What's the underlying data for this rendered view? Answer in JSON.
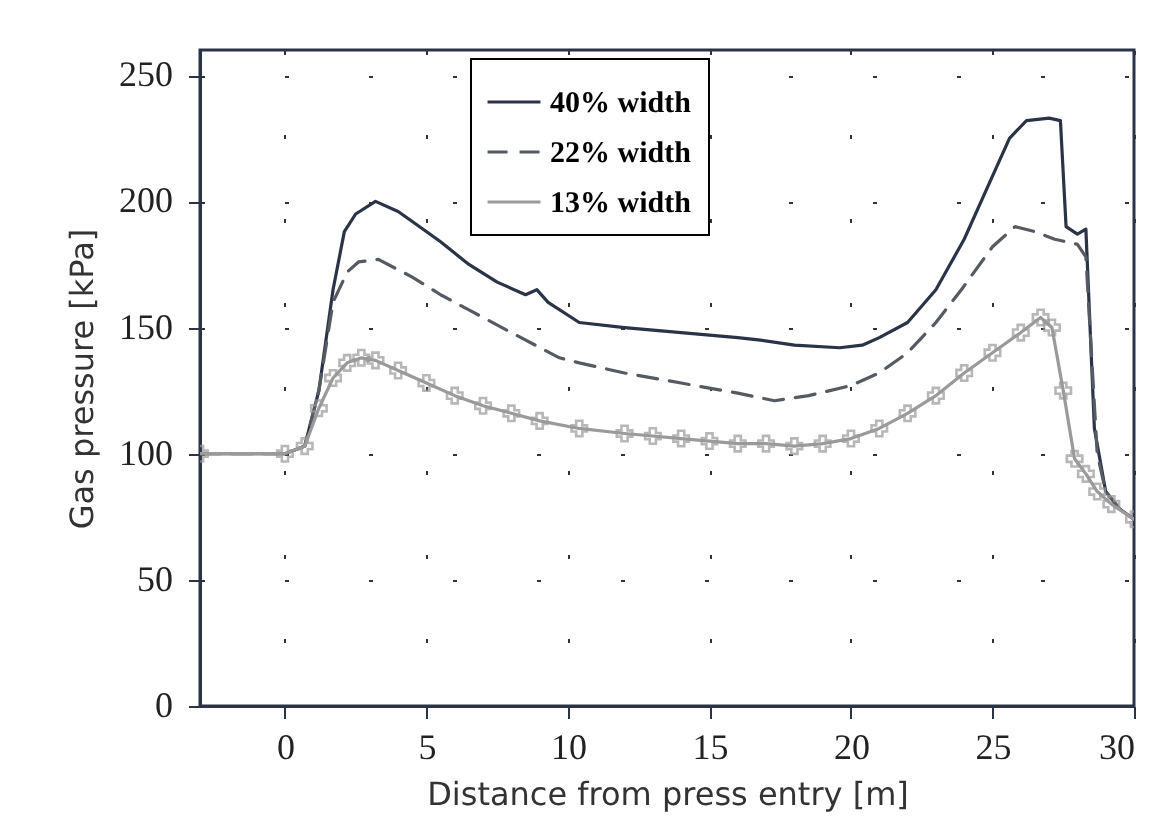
{
  "chart_data": {
    "type": "line",
    "xlabel": "Distance from press entry [m]",
    "ylabel": "Gas pressure [kPa]",
    "xlim": [
      -3,
      30
    ],
    "ylim": [
      0,
      260
    ],
    "xticks": [
      0,
      5,
      10,
      15,
      20,
      25,
      30
    ],
    "yticks": [
      0,
      50,
      100,
      150,
      200,
      250
    ],
    "grid": true,
    "legend": "top",
    "series": [
      {
        "name": "40% width",
        "color": "#2a3446",
        "line_style": "solid",
        "x": [
          -3,
          0,
          0.7,
          1.2,
          1.7,
          2.1,
          2.5,
          3.2,
          4.0,
          4.5,
          5.5,
          6.5,
          7.5,
          8.5,
          8.9,
          9.3,
          10.4,
          12,
          14,
          16,
          16.8,
          18,
          19.6,
          20.4,
          21,
          22,
          23,
          24,
          25,
          25.6,
          26.2,
          27.0,
          27.4,
          27.6,
          28.0,
          28.3,
          28.6,
          29.0,
          29.5,
          30
        ],
        "values": [
          100,
          100,
          103,
          125,
          165,
          188,
          195,
          200,
          196,
          192,
          184,
          175,
          168,
          163,
          165,
          160,
          152,
          150,
          148,
          146,
          145,
          143,
          142,
          143,
          146,
          152,
          165,
          185,
          210,
          225,
          232,
          233,
          232,
          190,
          187,
          189,
          110,
          85,
          78,
          74
        ]
      },
      {
        "name": "22% width",
        "color": "#555a63",
        "line_style": "dashed",
        "x": [
          -3,
          0,
          0.7,
          1.2,
          1.7,
          2.2,
          2.6,
          3.3,
          4.5,
          5.5,
          6.5,
          8,
          9.7,
          10.4,
          12,
          14,
          16,
          17.3,
          18.5,
          20,
          21,
          22,
          23,
          23.9,
          25,
          25.8,
          26.5,
          27.2,
          28.0,
          28.3,
          28.7,
          29.0,
          29.5,
          30
        ],
        "values": [
          100,
          100,
          103,
          125,
          160,
          172,
          176,
          177,
          170,
          163,
          157,
          148,
          138,
          136,
          132,
          128,
          124,
          121,
          123,
          127,
          132,
          140,
          152,
          165,
          182,
          190,
          188,
          185,
          183,
          178,
          100,
          85,
          78,
          74
        ]
      },
      {
        "name": "13% width",
        "color": "#9a9a9a",
        "line_style": "solid",
        "marker": "cross",
        "x": [
          -3,
          0,
          0.7,
          1.2,
          1.7,
          2.2,
          2.7,
          3.2,
          4,
          5,
          6,
          7,
          8,
          9,
          10.4,
          12,
          13,
          14,
          15,
          16,
          17,
          18,
          19,
          20,
          21,
          22,
          23,
          24,
          25,
          26,
          26.7,
          27.1,
          27.5,
          27.9,
          28.3,
          28.7,
          29.2,
          30
        ],
        "values": [
          100,
          100,
          103,
          118,
          130,
          136,
          138,
          137,
          133,
          128,
          123,
          119,
          116,
          113,
          110,
          108,
          107,
          106,
          105,
          104,
          104,
          103,
          104,
          106,
          110,
          116,
          123,
          132,
          140,
          148,
          154,
          150,
          125,
          98,
          92,
          85,
          80,
          74
        ]
      }
    ]
  }
}
